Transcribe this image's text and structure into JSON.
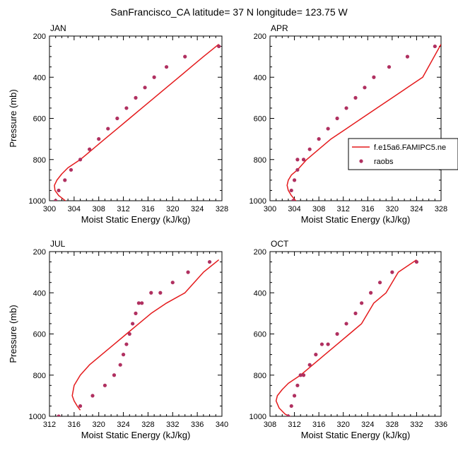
{
  "figure": {
    "title": "SanFrancisco_CA  latitude= 37 N longitude= 123.75 W"
  },
  "legend": {
    "entries": [
      {
        "label": "f.e15a6.FAMIPC5.ne",
        "style": "line",
        "color": "#e41a1c"
      },
      {
        "label": "raobs",
        "style": "marker",
        "color": "#b03060"
      }
    ]
  },
  "colors": {
    "model": "#e41a1c",
    "obs": "#b03060"
  },
  "chart_data": [
    {
      "type": "line",
      "panel_label": "JAN",
      "xlabel": "Moist Static Energy (kJ/kg)",
      "ylabel": "Pressure (mb)",
      "xlim": [
        300,
        328
      ],
      "ylim": [
        1000,
        200
      ],
      "xticks": [
        300,
        304,
        308,
        312,
        316,
        320,
        324,
        328
      ],
      "yticks": [
        200,
        400,
        600,
        800,
        1000
      ],
      "series": [
        {
          "style": "line",
          "x": [
            303.0,
            301.5,
            300.9,
            300.8,
            301.2,
            302.0,
            303.0,
            305.0,
            307.0,
            309.0,
            311.0,
            313.0,
            315.0,
            317.0,
            319.0,
            321.0,
            323.0,
            325.0,
            327.5
          ],
          "y": [
            1010,
            975,
            950,
            925,
            900,
            870,
            840,
            800,
            750,
            700,
            650,
            600,
            550,
            500,
            450,
            400,
            350,
            300,
            240
          ]
        },
        {
          "style": "marker",
          "x": [
            301.0,
            301.5,
            302.5,
            303.5,
            305.0,
            306.5,
            308.0,
            309.5,
            311.0,
            312.5,
            314.0,
            315.5,
            317.0,
            319.0,
            322.0,
            327.5
          ],
          "y": [
            1000,
            950,
            900,
            850,
            800,
            750,
            700,
            650,
            600,
            550,
            500,
            450,
            400,
            350,
            300,
            250
          ]
        }
      ]
    },
    {
      "type": "line",
      "panel_label": "APR",
      "xlabel": "Moist Static Energy (kJ/kg)",
      "ylabel": "",
      "xlim": [
        300,
        328
      ],
      "ylim": [
        1000,
        200
      ],
      "xticks": [
        300,
        304,
        308,
        312,
        316,
        320,
        324,
        328
      ],
      "yticks": [
        200,
        400,
        600,
        800,
        1000
      ],
      "series": [
        {
          "style": "line",
          "x": [
            304.5,
            303.5,
            303.0,
            302.8,
            303.0,
            303.5,
            304.5,
            306.0,
            308.0,
            310.0,
            312.5,
            315.0,
            317.5,
            320.0,
            322.5,
            325.0,
            328.0
          ],
          "y": [
            1010,
            975,
            950,
            925,
            900,
            875,
            850,
            800,
            750,
            700,
            650,
            600,
            550,
            500,
            450,
            400,
            240
          ]
        },
        {
          "style": "marker",
          "x": [
            303.8,
            303.5,
            304.0,
            304.5,
            304.5,
            305.5,
            306.5,
            308.0,
            309.5,
            311.0,
            312.5,
            314.0,
            315.5,
            317.0,
            319.5,
            322.5,
            327.0
          ],
          "y": [
            1000,
            950,
            900,
            850,
            800,
            800,
            750,
            700,
            650,
            600,
            550,
            500,
            450,
            400,
            350,
            300,
            250
          ]
        }
      ]
    },
    {
      "type": "line",
      "panel_label": "JUL",
      "xlabel": "Moist Static Energy (kJ/kg)",
      "ylabel": "Pressure (mb)",
      "xlim": [
        312,
        340
      ],
      "ylim": [
        1000,
        200
      ],
      "xticks": [
        312,
        316,
        320,
        324,
        328,
        332,
        336,
        340
      ],
      "yticks": [
        200,
        400,
        600,
        800,
        1000
      ],
      "series": [
        {
          "style": "line",
          "x": [
            317.0,
            316.5,
            316.0,
            315.7,
            316.0,
            317.0,
            318.5,
            320.5,
            322.5,
            324.5,
            326.5,
            328.5,
            331.0,
            334.0,
            337.0,
            339.5
          ],
          "y": [
            970,
            950,
            925,
            900,
            850,
            800,
            750,
            700,
            650,
            600,
            550,
            500,
            450,
            400,
            300,
            240
          ]
        },
        {
          "style": "marker",
          "x": [
            313.5,
            317.0,
            319.0,
            321.0,
            322.5,
            323.5,
            324.0,
            324.5,
            325.0,
            325.5,
            326.0,
            326.5,
            327.0,
            328.5,
            330.0,
            332.0,
            334.5,
            338.0
          ],
          "y": [
            1000,
            950,
            900,
            850,
            800,
            750,
            700,
            650,
            600,
            550,
            500,
            450,
            450,
            400,
            400,
            350,
            300,
            250
          ]
        }
      ]
    },
    {
      "type": "line",
      "panel_label": "OCT",
      "xlabel": "Moist Static Energy (kJ/kg)",
      "ylabel": "",
      "xlim": [
        308,
        336
      ],
      "ylim": [
        1000,
        200
      ],
      "xticks": [
        308,
        312,
        316,
        320,
        324,
        328,
        332,
        336
      ],
      "yticks": [
        200,
        400,
        600,
        800,
        1000
      ],
      "series": [
        {
          "style": "line",
          "x": [
            312.0,
            310.5,
            309.5,
            309.0,
            309.2,
            310.0,
            311.0,
            313.0,
            315.0,
            317.0,
            319.0,
            321.0,
            323.0,
            325.0,
            327.0,
            329.0,
            332.0
          ],
          "y": [
            1010,
            990,
            960,
            925,
            900,
            870,
            840,
            800,
            750,
            700,
            650,
            600,
            550,
            450,
            400,
            300,
            240
          ]
        },
        {
          "style": "marker",
          "x": [
            311.0,
            311.5,
            312.0,
            312.5,
            313.0,
            313.5,
            314.5,
            315.5,
            316.5,
            317.5,
            319.0,
            320.5,
            322.0,
            323.0,
            324.5,
            326.0,
            328.0,
            332.0
          ],
          "y": [
            1000,
            950,
            900,
            850,
            800,
            800,
            750,
            700,
            650,
            650,
            600,
            550,
            500,
            450,
            400,
            350,
            300,
            250
          ]
        }
      ]
    }
  ]
}
